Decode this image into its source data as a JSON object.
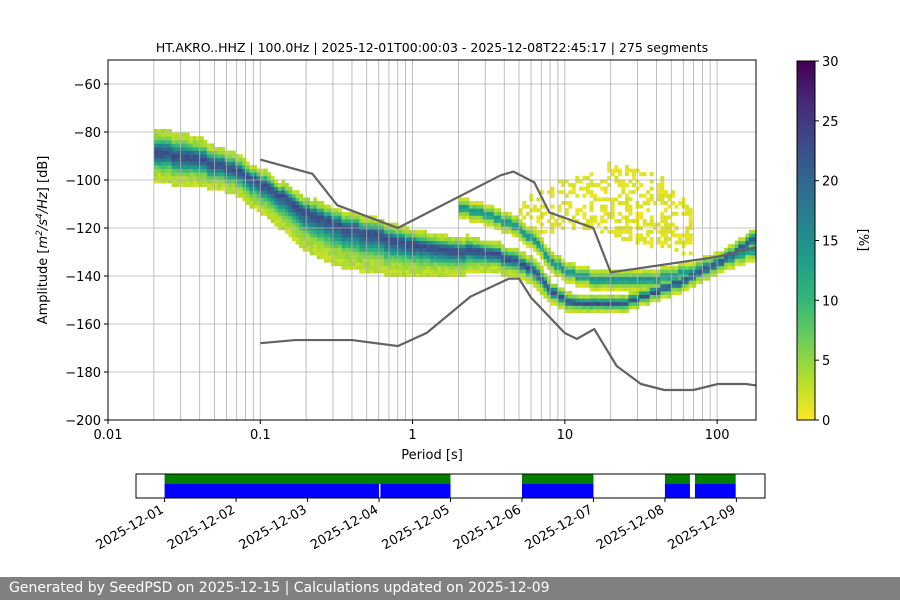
{
  "chart_data": [
    {
      "type": "heatmap",
      "title": "HT.AKRO..HHZ | 100.0Hz | 2025-12-01T00:00:03 - 2025-12-08T22:45:17 | 275 segments",
      "xlabel": "Period [s]",
      "ylabel_parts": [
        "Amplitude [",
        "m",
        "2",
        "/",
        "s",
        "4",
        "/",
        "Hz",
        "] [dB]"
      ],
      "xscale": "log",
      "xlim": [
        0.01,
        180
      ],
      "ylim": [
        -200,
        -50
      ],
      "xticks": [
        0.01,
        0.1,
        1,
        10,
        100
      ],
      "xtick_labels": [
        "0.01",
        "0.1",
        "1",
        "10",
        "100"
      ],
      "yticks": [
        -200,
        -180,
        -160,
        -140,
        -120,
        -100,
        -80,
        -60
      ],
      "ytick_labels": [
        "−200",
        "−180",
        "−160",
        "−140",
        "−120",
        "−100",
        "−80",
        "−60"
      ],
      "grid": true,
      "grid_periods": [
        0.02,
        0.03,
        0.04,
        0.05,
        0.06,
        0.07,
        0.08,
        0.09,
        0.1,
        0.2,
        0.3,
        0.4,
        0.5,
        0.6,
        0.7,
        0.8,
        0.9,
        1,
        2,
        3,
        4,
        5,
        6,
        7,
        8,
        9,
        10,
        20,
        30,
        40,
        50,
        60,
        70,
        80,
        90,
        100
      ],
      "colorbar": {
        "label": "[%]",
        "min": 0,
        "max": 30,
        "ticks": [
          0,
          5,
          10,
          15,
          20,
          25,
          30
        ],
        "tick_labels": [
          "0",
          "5",
          "10",
          "15",
          "20",
          "25",
          "30"
        ],
        "colors": [
          "#fde725",
          "#b5de2b",
          "#6ece58",
          "#35b779",
          "#1f9e89",
          "#26828e",
          "#31688e",
          "#3e4989",
          "#482878",
          "#440154"
        ]
      },
      "mode_curve": {
        "period": [
          0.02,
          0.03,
          0.05,
          0.07,
          0.1,
          0.15,
          0.2,
          0.3,
          0.5,
          0.7,
          1.0,
          1.5,
          2.0,
          3.0,
          4.0,
          5.0,
          6.0,
          7.0,
          8.0,
          10.0,
          13.0,
          17.0,
          25.0,
          35.0,
          50.0,
          70.0,
          100.0,
          130.0,
          180.0
        ],
        "amplitude": [
          -88,
          -90,
          -93,
          -96,
          -101,
          -108,
          -113,
          -118,
          -122,
          -124,
          -126,
          -128,
          -129,
          -130,
          -132,
          -134,
          -137,
          -141,
          -146,
          -150,
          -152,
          -152,
          -151,
          -148,
          -144,
          -140,
          -135,
          -130,
          -124
        ],
        "upper_spread": [
          10,
          10,
          8,
          7,
          6,
          6,
          6,
          7,
          7,
          7,
          6,
          6,
          6,
          5,
          5,
          5,
          5,
          5,
          4,
          4,
          4,
          4,
          4,
          4,
          4,
          4,
          4,
          4,
          5
        ],
        "lower_spread": [
          12,
          12,
          10,
          10,
          12,
          14,
          16,
          17,
          16,
          15,
          13,
          11,
          10,
          8,
          7,
          6,
          6,
          6,
          5,
          4,
          3,
          3,
          3,
          3,
          4,
          4,
          4,
          4,
          4
        ]
      },
      "secondary_branch": {
        "period": [
          2.0,
          3.0,
          4.0,
          5.0,
          6.0,
          7.0,
          8.0,
          10.0,
          15.0,
          20.0,
          30.0,
          50.0,
          70.0,
          100.0,
          140.0,
          180.0
        ],
        "amplitude": [
          -111,
          -114,
          -117,
          -120,
          -124,
          -128,
          -133,
          -138,
          -141,
          -142,
          -142,
          -140,
          -138,
          -134,
          -131,
          -129
        ]
      },
      "outlier_band": {
        "period": [
          5.0,
          7.0,
          10.0,
          15.0,
          20.0,
          30.0,
          50.0,
          70.0
        ],
        "top": [
          -108,
          -104,
          -100,
          -96,
          -93,
          -94,
          -100,
          -112
        ],
        "bottom": [
          -125,
          -122,
          -120,
          -120,
          -122,
          -126,
          -128,
          -132
        ]
      },
      "nhnm": {
        "period": [
          0.1,
          0.22,
          0.32,
          0.8,
          3.8,
          4.6,
          6.3,
          7.9,
          15.4,
          20.0,
          100.0,
          180.0
        ],
        "amplitude": [
          -91.5,
          -97.4,
          -110.5,
          -120.0,
          -98.0,
          -96.5,
          -101.0,
          -113.5,
          -120.0,
          -138.5,
          -132.0,
          -128.0
        ]
      },
      "nlnm": {
        "period": [
          0.1,
          0.17,
          0.4,
          0.8,
          1.24,
          2.4,
          4.3,
          5.0,
          6.0,
          10.0,
          12.0,
          15.6,
          21.9,
          31.6,
          45.0,
          70.0,
          101.0,
          154.0,
          180.0
        ],
        "amplitude": [
          -168.0,
          -166.7,
          -166.7,
          -169.2,
          -163.7,
          -148.6,
          -141.1,
          -141.1,
          -149.0,
          -163.8,
          -166.2,
          -162.1,
          -177.5,
          -185.0,
          -187.5,
          -187.5,
          -185.0,
          -185.0,
          -185.6
        ]
      }
    },
    {
      "type": "timeline",
      "date_ticks": [
        "2025-12-01",
        "2025-12-02",
        "2025-12-03",
        "2025-12-04",
        "2025-12-05",
        "2025-12-06",
        "2025-12-07",
        "2025-12-08",
        "2025-12-09"
      ],
      "xlim_days": [
        -0.4,
        8.4
      ],
      "coverage": [
        {
          "start_day": 0.0,
          "end_day": 3.0
        },
        {
          "start_day": 3.02,
          "end_day": 4.0
        },
        {
          "start_day": 5.0,
          "end_day": 6.0
        },
        {
          "start_day": 7.0,
          "end_day": 7.35
        },
        {
          "start_day": 7.42,
          "end_day": 7.99
        }
      ],
      "psd_used": [
        {
          "start_day": 0.0,
          "end_day": 4.0
        },
        {
          "start_day": 5.0,
          "end_day": 6.0
        },
        {
          "start_day": 7.0,
          "end_day": 7.35
        },
        {
          "start_day": 7.42,
          "end_day": 7.99
        }
      ],
      "coverage_color": "#0000ff",
      "psd_color": "#007f00"
    }
  ],
  "footer": {
    "text": "Generated by SeedPSD on 2025-12-15 | Calculations updated on 2025-12-09"
  },
  "colors": {
    "model_line": "#636363",
    "grid": "#b0b0b0",
    "footer_bg": "#808080"
  }
}
